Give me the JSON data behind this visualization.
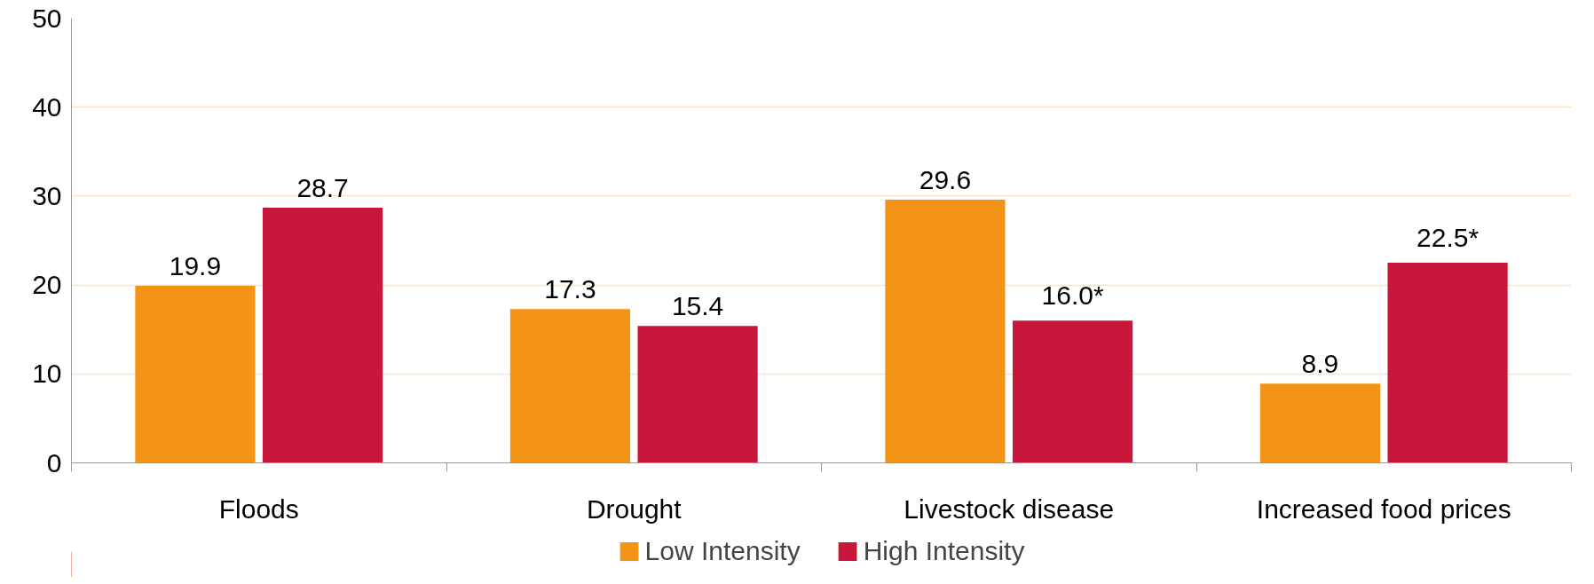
{
  "chart_data": {
    "type": "bar",
    "categories": [
      "Floods",
      "Drought",
      "Livestock disease",
      "Increased food prices"
    ],
    "series": [
      {
        "name": "Low Intensity",
        "color": "#f39419",
        "values": [
          19.9,
          17.3,
          29.6,
          8.9
        ],
        "value_labels": [
          "19.9",
          "17.3",
          "29.6",
          "8.9"
        ]
      },
      {
        "name": "High Intensity",
        "color": "#c8173a",
        "values": [
          28.7,
          15.4,
          16.0,
          22.5
        ],
        "value_labels": [
          "28.7",
          "15.4",
          "16.0*",
          "22.5*"
        ]
      }
    ],
    "ylim": [
      0,
      50
    ],
    "yticks": [
      0,
      10,
      20,
      30,
      40,
      50
    ],
    "grid": "y",
    "legend": "bottom"
  }
}
